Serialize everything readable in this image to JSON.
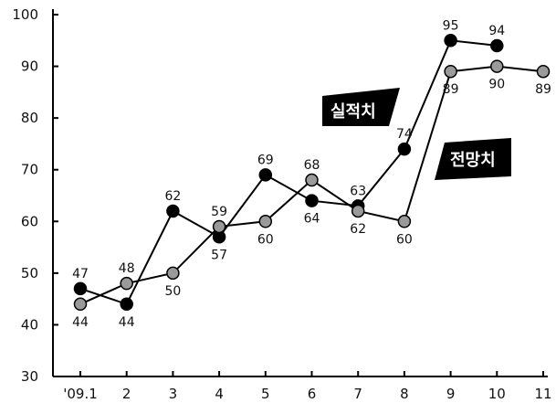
{
  "chart_data": {
    "type": "line",
    "title": "",
    "xlabel": "",
    "ylabel": "",
    "categories": [
      "'09.1",
      "2",
      "3",
      "4",
      "5",
      "6",
      "7",
      "8",
      "9",
      "10",
      "11"
    ],
    "ylim": [
      30,
      100
    ],
    "yticks": [
      30,
      40,
      50,
      60,
      70,
      80,
      90,
      100
    ],
    "grid": false,
    "series": [
      {
        "name": "실적치",
        "color": "#000000",
        "values": [
          47,
          44,
          62,
          57,
          69,
          64,
          63,
          74,
          95,
          94,
          null
        ],
        "label_pos": [
          "above",
          "below",
          "above",
          "below",
          "above",
          "below",
          "above",
          "above",
          "above",
          "above",
          null
        ]
      },
      {
        "name": "전망치",
        "color": "#9a9a9a",
        "values": [
          44,
          48,
          50,
          59,
          60,
          68,
          62,
          60,
          89,
          90,
          89
        ],
        "label_pos": [
          "below",
          "above",
          "below",
          "above",
          "below",
          "above",
          "below",
          "below",
          "below",
          "below",
          "below"
        ]
      }
    ]
  }
}
